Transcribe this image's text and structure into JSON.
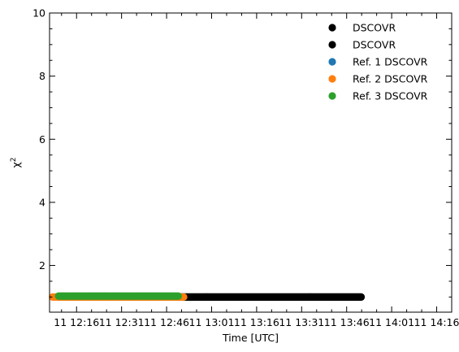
{
  "chart_data": {
    "type": "scatter",
    "xlabel": "Time [UTC]",
    "ylabel": "χ",
    "ylabel_sup": "2",
    "x_tick_labels": [
      "11 12:16",
      "11 12:31",
      "11 12:46",
      "11 13:01",
      "11 13:16",
      "11 13:31",
      "11 13:46",
      "11 14:01",
      "11 14:16"
    ],
    "x_ticks_minutes": [
      16,
      31,
      46,
      61,
      76,
      91,
      106,
      121,
      136
    ],
    "xlim_minutes": [
      7,
      141
    ],
    "ylim": [
      0.52,
      10
    ],
    "y_ticks": [
      2,
      4,
      6,
      8,
      10
    ],
    "y_tick_labels": [
      "2",
      "4",
      "6",
      "8",
      "10"
    ],
    "legend_position": "top-right",
    "series": [
      {
        "name": "DSCOVR",
        "color": "#000000",
        "x_start_minutes": 10,
        "x_end_minutes": 111,
        "y": 1.0
      },
      {
        "name": "DSCOVR",
        "color": "#000000",
        "x_start_minutes": 10,
        "x_end_minutes": 111,
        "y": 1.0
      },
      {
        "name": "Ref. 1 DSCOVR",
        "color": "#1f77b4",
        "x_start_minutes": 10,
        "x_end_minutes": 51,
        "y": 1.0
      },
      {
        "name": "Ref. 2 DSCOVR",
        "color": "#ff7f0e",
        "x_start_minutes": 8,
        "x_end_minutes": 52,
        "y": 1.0
      },
      {
        "name": "Ref. 3 DSCOVR",
        "color": "#2ca02c",
        "x_start_minutes": 10,
        "x_end_minutes": 50,
        "y": 1.03
      }
    ]
  }
}
